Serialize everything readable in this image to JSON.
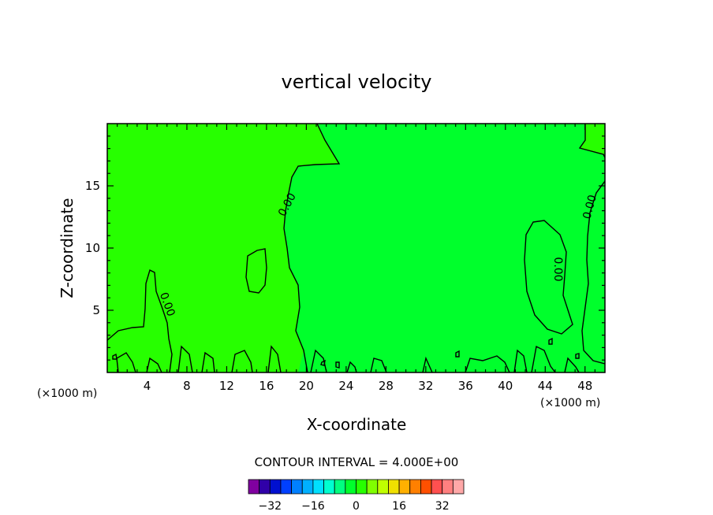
{
  "chart_data": {
    "type": "contour",
    "title": "vertical velocity",
    "xlabel": "X-coordinate",
    "ylabel": "Z-coordinate",
    "x_unit_left": "(×1000 m)",
    "x_unit_right": "(×1000 m)",
    "xlim": [
      0,
      50
    ],
    "ylim": [
      0,
      20
    ],
    "xticks": [
      4,
      8,
      12,
      16,
      20,
      24,
      28,
      32,
      36,
      40,
      44,
      48
    ],
    "yticks": [
      5,
      10,
      15
    ],
    "contour_interval_text": "CONTOUR INTERVAL = 4.000E+00",
    "contour_labels": [
      "0.00",
      "0.00",
      "0.00",
      "0.00"
    ],
    "fill_colors": {
      "negative": "#27ff00",
      "positive": "#00ff2c"
    },
    "colorbar": {
      "tick_labels": [
        "-32",
        "-16",
        "0",
        "16",
        "32"
      ],
      "tick_values": [
        -32,
        -16,
        0,
        16,
        32
      ],
      "colors": [
        "#8000a0",
        "#3000a8",
        "#0010d0",
        "#0040ff",
        "#0080ff",
        "#00b0ff",
        "#00e0ff",
        "#00ffd0",
        "#00ff80",
        "#00ff2c",
        "#27ff00",
        "#80ff00",
        "#c0ff00",
        "#f0e000",
        "#ffb000",
        "#ff8000",
        "#ff5000",
        "#ff5050",
        "#ff8080",
        "#ffa8a8"
      ]
    }
  }
}
